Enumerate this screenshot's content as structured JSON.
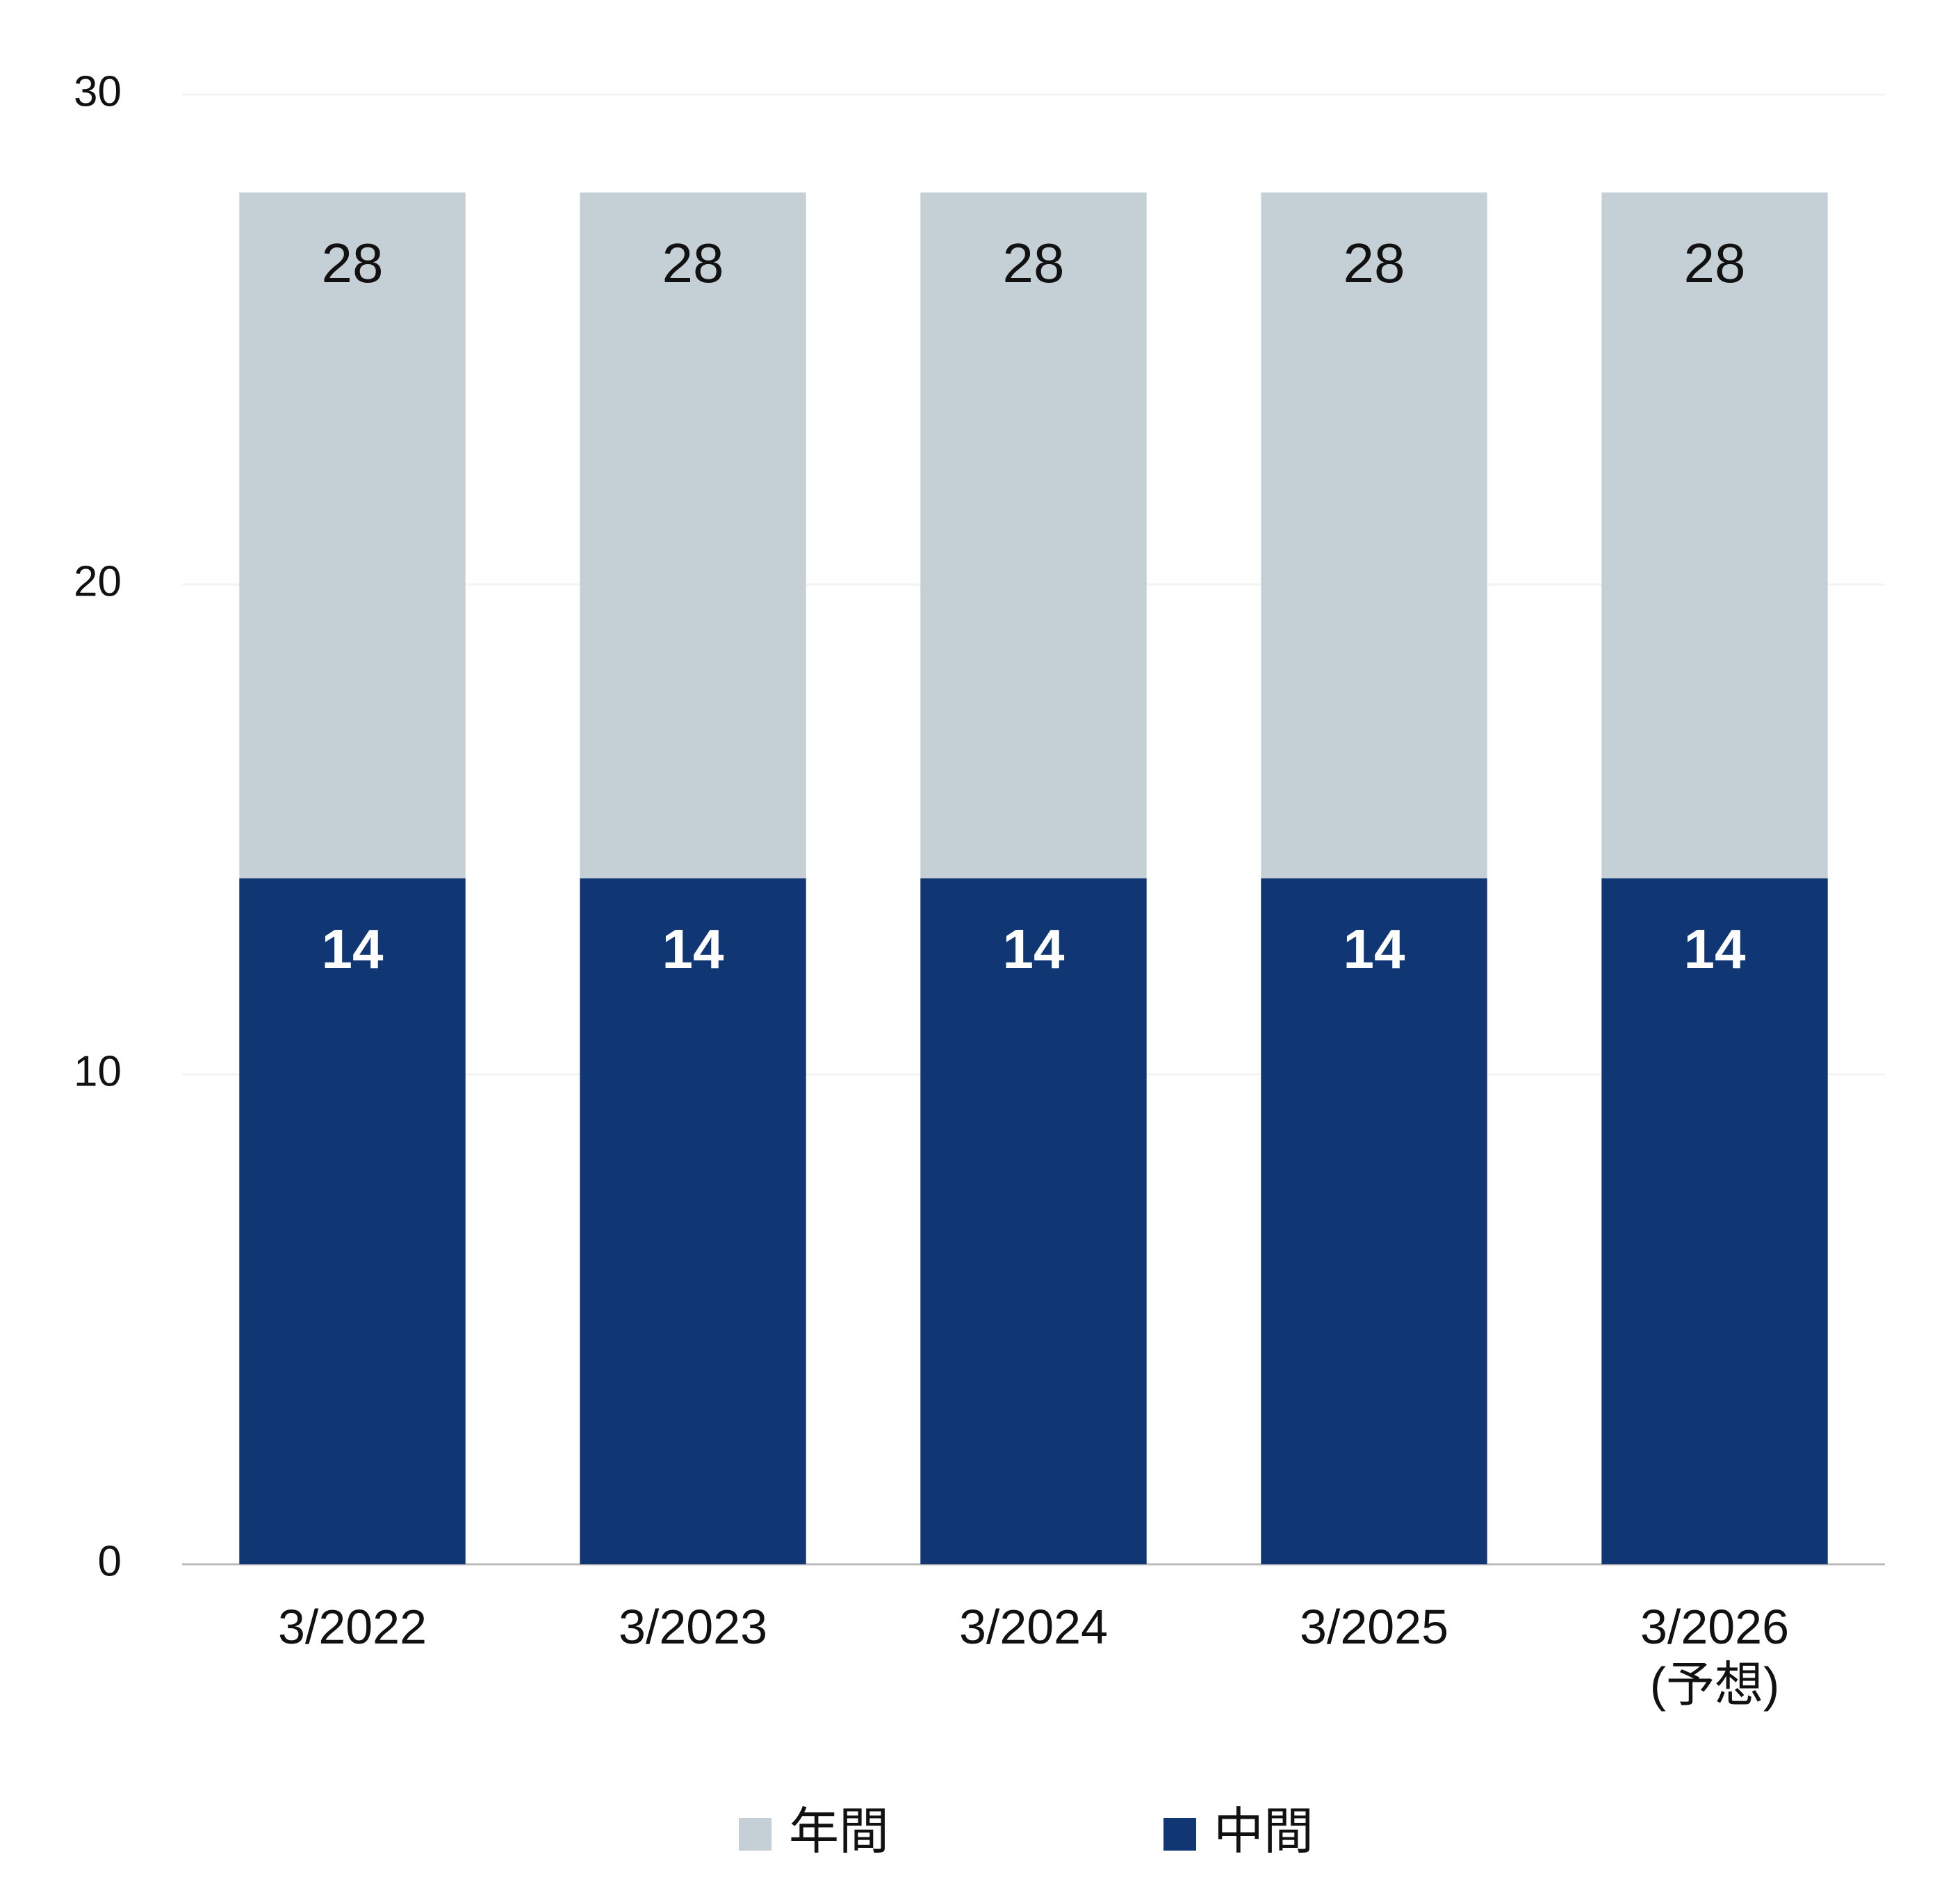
{
  "chart_data": {
    "type": "bar",
    "overlap": true,
    "categories": [
      "3/2022",
      "3/2023",
      "3/2024",
      "3/2025",
      "3/2026\n(予想)"
    ],
    "series": [
      {
        "name": "年間",
        "color": "#c5cfd6",
        "label_color": "#111111",
        "values": [
          28,
          28,
          28,
          28,
          28
        ]
      },
      {
        "name": "中間",
        "color": "#103673",
        "label_color": "#ffffff",
        "values": [
          14,
          14,
          14,
          14,
          14
        ]
      }
    ],
    "ylim": [
      0,
      30
    ],
    "yticks": [
      0,
      10,
      20,
      30
    ],
    "grid": true,
    "legend": "bottom"
  }
}
